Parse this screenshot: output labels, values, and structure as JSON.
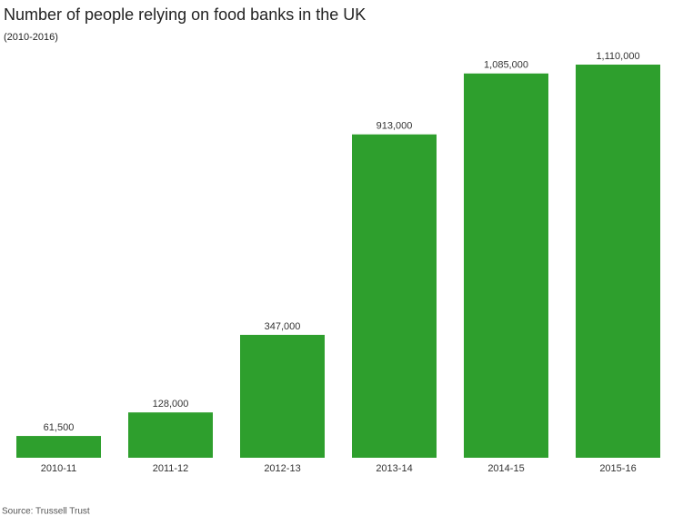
{
  "chart_data": {
    "type": "bar",
    "title": "Number of people relying on food banks in the UK",
    "subtitle": "(2010-2016)",
    "source": "Source: Trussell Trust",
    "categories": [
      "2010-11",
      "2011-12",
      "2012-13",
      "2013-14",
      "2014-15",
      "2015-16"
    ],
    "values": [
      61500,
      128000,
      347000,
      913000,
      1085000,
      1110000
    ],
    "value_labels": [
      "61,500",
      "128,000",
      "347,000",
      "913,000",
      "1,085,000",
      "1,110,000"
    ],
    "color": "#2e9f2d"
  }
}
